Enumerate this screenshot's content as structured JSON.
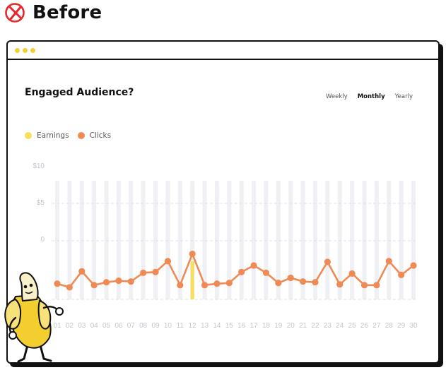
{
  "heading": {
    "text": "Before",
    "icon": "x-circle-icon",
    "icon_color": "#e8262e"
  },
  "window": {
    "dot_color": "#f5cd37"
  },
  "card": {
    "title": "Engaged Audience?",
    "tabs": [
      {
        "label": "Weekly",
        "active": false
      },
      {
        "label": "Monthly",
        "active": true
      },
      {
        "label": "Yearly",
        "active": false
      }
    ]
  },
  "chart_data": {
    "type": "line",
    "title": "Engaged Audience?",
    "legend": "top-left",
    "grid": true,
    "y_tick_labels": [
      "$10",
      "$5",
      "0"
    ],
    "categories": [
      "01",
      "02",
      "03",
      "04",
      "05",
      "06",
      "07",
      "08",
      "09",
      "10",
      "11",
      "12",
      "13",
      "14",
      "15",
      "16",
      "17",
      "18",
      "19",
      "20",
      "21",
      "22",
      "23",
      "24",
      "25",
      "26",
      "27",
      "28",
      "29",
      "30"
    ],
    "series": [
      {
        "name": "Earnings",
        "color": "#f7df5c",
        "mark": "bar",
        "values": [
          0,
          0,
          0,
          0,
          0,
          0,
          0,
          0,
          0,
          0,
          0,
          1,
          0,
          0,
          0,
          0,
          0,
          0,
          0,
          0,
          0,
          0,
          0,
          0,
          0,
          0,
          0,
          0,
          0,
          0
        ]
      },
      {
        "name": "Clicks",
        "color": "#ef8a55",
        "mark": "line",
        "values": [
          -5.9,
          -6.4,
          -4.2,
          -6.1,
          -5.7,
          -5.5,
          -5.6,
          -4.4,
          -4.3,
          -2.8,
          -6.1,
          -1.8,
          -6.1,
          -5.9,
          -5.8,
          -4.3,
          -3.4,
          -4.4,
          -5.8,
          -5.1,
          -5.6,
          -5.7,
          -2.9,
          -6.0,
          -4.5,
          -6.1,
          -6.1,
          -2.8,
          -4.7,
          -3.4
        ]
      }
    ]
  }
}
